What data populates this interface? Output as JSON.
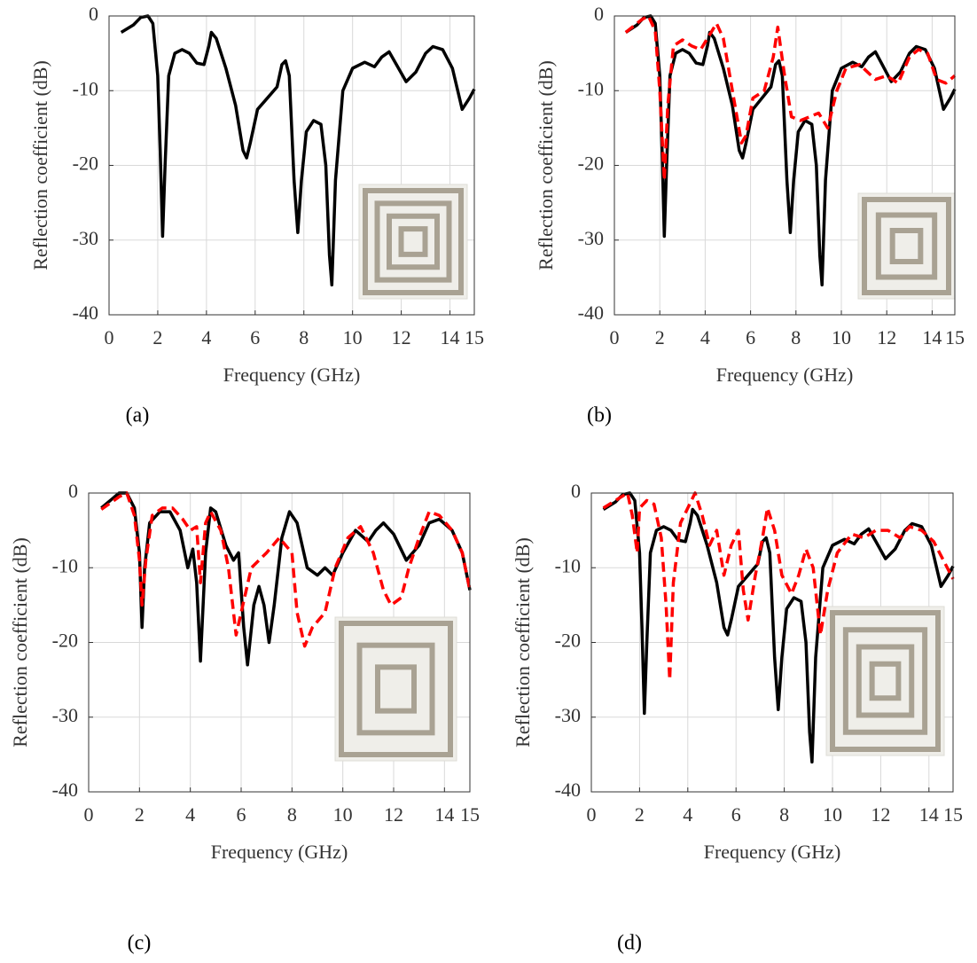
{
  "chart_data": [
    {
      "type": "line",
      "caption": "(a)",
      "xlabel": "Frequency (GHz)",
      "ylabel": "Reflection coefficient (dB)",
      "xlim": [
        0,
        15
      ],
      "ylim": [
        -40,
        0
      ],
      "xticks": [
        0,
        2,
        4,
        6,
        8,
        10,
        12,
        14,
        15
      ],
      "yticks": [
        -40,
        -30,
        -20,
        -10,
        0
      ],
      "grid": true,
      "series": [
        {
          "color": "#000000",
          "dash": false,
          "x": [
            0.5,
            1.0,
            1.3,
            1.6,
            1.8,
            2.0,
            2.1,
            2.2,
            2.3,
            2.45,
            2.7,
            3.0,
            3.3,
            3.6,
            3.9,
            4.1,
            4.2,
            4.4,
            4.8,
            5.2,
            5.5,
            5.65,
            5.8,
            6.1,
            6.5,
            6.9,
            7.1,
            7.25,
            7.4,
            7.6,
            7.75,
            7.9,
            8.1,
            8.4,
            8.7,
            8.9,
            9.05,
            9.15,
            9.3,
            9.6,
            10.0,
            10.5,
            10.9,
            11.2,
            11.5,
            11.8,
            12.2,
            12.6,
            13.0,
            13.3,
            13.7,
            14.1,
            14.5,
            14.8,
            15.0
          ],
          "values": [
            -2.2,
            -1.2,
            -0.2,
            0,
            -1,
            -8,
            -18,
            -29.5,
            -20,
            -8,
            -5,
            -4.5,
            -5,
            -6.3,
            -6.5,
            -4,
            -2.2,
            -3,
            -7,
            -12,
            -18,
            -19,
            -17,
            -12.5,
            -11,
            -9.5,
            -6.5,
            -6,
            -8,
            -22,
            -29,
            -22,
            -15.5,
            -14,
            -14.5,
            -20,
            -32,
            -36,
            -22,
            -10,
            -7,
            -6.2,
            -6.8,
            -5.5,
            -4.8,
            -6.5,
            -8.8,
            -7.5,
            -5,
            -4.1,
            -4.5,
            -7,
            -12.5,
            -11,
            -9.8
          ]
        }
      ]
    },
    {
      "type": "line",
      "caption": "(b)",
      "xlabel": "Frequency (GHz)",
      "ylabel": "Reflection coefficient (dB)",
      "xlim": [
        0,
        15
      ],
      "ylim": [
        -40,
        0
      ],
      "xticks": [
        0,
        2,
        4,
        6,
        8,
        10,
        12,
        14,
        15
      ],
      "yticks": [
        -40,
        -30,
        -20,
        -10,
        0
      ],
      "grid": true,
      "series": [
        {
          "color": "#000000",
          "dash": false,
          "x": [
            0.5,
            1.0,
            1.3,
            1.6,
            1.8,
            2.0,
            2.1,
            2.2,
            2.3,
            2.45,
            2.7,
            3.0,
            3.3,
            3.6,
            3.9,
            4.1,
            4.2,
            4.4,
            4.8,
            5.2,
            5.5,
            5.65,
            5.8,
            6.1,
            6.5,
            6.9,
            7.1,
            7.25,
            7.4,
            7.6,
            7.75,
            7.9,
            8.1,
            8.4,
            8.7,
            8.9,
            9.05,
            9.15,
            9.3,
            9.6,
            10.0,
            10.5,
            10.9,
            11.2,
            11.5,
            11.8,
            12.2,
            12.6,
            13.0,
            13.3,
            13.7,
            14.1,
            14.5,
            14.8,
            15.0
          ],
          "values": [
            -2.2,
            -1.2,
            -0.2,
            0,
            -1,
            -8,
            -18,
            -29.5,
            -20,
            -8,
            -5,
            -4.5,
            -5,
            -6.3,
            -6.5,
            -4,
            -2.2,
            -3,
            -7,
            -12,
            -18,
            -19,
            -17,
            -12.5,
            -11,
            -9.5,
            -6.5,
            -6,
            -8,
            -22,
            -29,
            -22,
            -15.5,
            -14,
            -14.5,
            -20,
            -32,
            -36,
            -22,
            -10,
            -7,
            -6.2,
            -6.8,
            -5.5,
            -4.8,
            -6.5,
            -8.8,
            -7.5,
            -5,
            -4.1,
            -4.5,
            -7,
            -12.5,
            -11,
            -9.8
          ]
        },
        {
          "color": "#ff0000",
          "dash": true,
          "x": [
            0.5,
            1.2,
            1.5,
            1.8,
            2.0,
            2.2,
            2.35,
            2.6,
            3.0,
            3.4,
            3.8,
            4.2,
            4.5,
            4.8,
            5.2,
            5.6,
            5.8,
            6.1,
            6.6,
            7.0,
            7.2,
            7.5,
            7.8,
            8.2,
            8.6,
            9.0,
            9.4,
            9.8,
            10.2,
            10.8,
            11.5,
            12.0,
            12.5,
            13.0,
            13.4,
            13.8,
            14.2,
            14.6,
            15.0
          ],
          "values": [
            -2.2,
            -0.5,
            0,
            -2,
            -10,
            -22,
            -12,
            -4,
            -3.2,
            -4,
            -4.5,
            -2.5,
            -1,
            -3,
            -10,
            -17,
            -16,
            -11,
            -10,
            -5.5,
            -1.5,
            -8,
            -13.5,
            -14,
            -13.5,
            -13,
            -15,
            -10,
            -7,
            -6.5,
            -8.5,
            -8,
            -9,
            -5.5,
            -4.5,
            -5,
            -8.5,
            -9,
            -8
          ]
        }
      ]
    },
    {
      "type": "line",
      "caption": "(c)",
      "xlabel": "Frequency (GHz)",
      "ylabel": "Reflection coefficient (dB)",
      "xlim": [
        0,
        15
      ],
      "ylim": [
        -40,
        0
      ],
      "xticks": [
        0,
        2,
        4,
        6,
        8,
        10,
        12,
        14,
        15
      ],
      "yticks": [
        -40,
        -30,
        -20,
        -10,
        0
      ],
      "grid": true,
      "series": [
        {
          "color": "#000000",
          "dash": false,
          "x": [
            0.5,
            1.2,
            1.5,
            1.8,
            2.0,
            2.1,
            2.2,
            2.4,
            2.8,
            3.2,
            3.6,
            3.9,
            4.1,
            4.25,
            4.4,
            4.6,
            4.8,
            5.0,
            5.4,
            5.7,
            5.9,
            6.1,
            6.25,
            6.5,
            6.7,
            6.9,
            7.1,
            7.3,
            7.6,
            7.9,
            8.2,
            8.6,
            9.0,
            9.3,
            9.6,
            10.0,
            10.5,
            11.0,
            11.3,
            11.6,
            12.0,
            12.5,
            13.0,
            13.4,
            13.8,
            14.3,
            14.7,
            15.0
          ],
          "values": [
            -2,
            0,
            0,
            -2,
            -8,
            -18,
            -10,
            -4,
            -2.5,
            -2.5,
            -5,
            -10,
            -7.5,
            -12,
            -22.5,
            -8,
            -2,
            -2.5,
            -7,
            -9,
            -8,
            -18,
            -23,
            -15,
            -12.5,
            -15,
            -20,
            -15,
            -6,
            -2.5,
            -4,
            -10,
            -11,
            -10,
            -11,
            -8,
            -5,
            -6.5,
            -5,
            -4,
            -5.5,
            -9,
            -7,
            -4,
            -3.5,
            -5,
            -8,
            -13
          ]
        },
        {
          "color": "#ff0000",
          "dash": true,
          "x": [
            0.5,
            1.2,
            1.5,
            1.8,
            2.0,
            2.1,
            2.25,
            2.5,
            2.9,
            3.3,
            3.7,
            4.0,
            4.25,
            4.4,
            4.6,
            4.8,
            5.2,
            5.5,
            5.8,
            6.0,
            6.4,
            7.0,
            7.5,
            8.0,
            8.2,
            8.5,
            8.8,
            9.3,
            9.7,
            10.2,
            10.7,
            11.2,
            11.6,
            11.9,
            12.3,
            12.6,
            13.0,
            13.4,
            13.8,
            14.3,
            14.7,
            15.0
          ],
          "values": [
            -2.2,
            -0.5,
            0,
            -3,
            -9,
            -15,
            -9,
            -3,
            -2,
            -2,
            -3.5,
            -5,
            -4.5,
            -12,
            -4,
            -2.5,
            -5,
            -10,
            -19,
            -16,
            -10,
            -8,
            -6,
            -8,
            -16,
            -20.5,
            -18,
            -16,
            -10,
            -6,
            -4.5,
            -8,
            -13,
            -15,
            -14,
            -10,
            -6,
            -2.5,
            -3,
            -5,
            -8,
            -13
          ]
        }
      ]
    },
    {
      "type": "line",
      "caption": "(d)",
      "xlabel": "Frequency (GHz)",
      "ylabel": "Reflection coefficient (dB)",
      "xlim": [
        0,
        15
      ],
      "ylim": [
        -40,
        0
      ],
      "xticks": [
        0,
        2,
        4,
        6,
        8,
        10,
        12,
        14,
        15
      ],
      "yticks": [
        -40,
        -30,
        -20,
        -10,
        0
      ],
      "grid": true,
      "series": [
        {
          "color": "#000000",
          "dash": false,
          "x": [
            0.5,
            1.0,
            1.3,
            1.6,
            1.8,
            2.0,
            2.1,
            2.2,
            2.3,
            2.45,
            2.7,
            3.0,
            3.3,
            3.6,
            3.9,
            4.1,
            4.2,
            4.4,
            4.8,
            5.2,
            5.5,
            5.65,
            5.8,
            6.1,
            6.5,
            6.9,
            7.1,
            7.25,
            7.4,
            7.6,
            7.75,
            7.9,
            8.1,
            8.4,
            8.7,
            8.9,
            9.05,
            9.15,
            9.3,
            9.6,
            10.0,
            10.5,
            10.9,
            11.2,
            11.5,
            11.8,
            12.2,
            12.6,
            13.0,
            13.3,
            13.7,
            14.1,
            14.5,
            14.8,
            15.0
          ],
          "values": [
            -2.2,
            -1.2,
            -0.2,
            0,
            -1,
            -8,
            -18,
            -29.5,
            -20,
            -8,
            -5,
            -4.5,
            -5,
            -6.3,
            -6.5,
            -4,
            -2.2,
            -3,
            -7,
            -12,
            -18,
            -19,
            -17,
            -12.5,
            -11,
            -9.5,
            -6.5,
            -6,
            -8,
            -22,
            -29,
            -22,
            -15.5,
            -14,
            -14.5,
            -20,
            -32,
            -36,
            -22,
            -10,
            -7,
            -6.2,
            -6.8,
            -5.5,
            -4.8,
            -6.5,
            -8.8,
            -7.5,
            -5,
            -4.1,
            -4.5,
            -7,
            -12.5,
            -11,
            -9.8
          ]
        },
        {
          "color": "#ff0000",
          "dash": true,
          "x": [
            0.5,
            1.0,
            1.5,
            1.7,
            1.9,
            2.0,
            2.3,
            2.6,
            2.9,
            3.1,
            3.25,
            3.4,
            3.7,
            4.0,
            4.3,
            4.6,
            4.9,
            5.2,
            5.5,
            5.8,
            6.1,
            6.3,
            6.5,
            6.8,
            7.1,
            7.3,
            7.6,
            7.9,
            8.3,
            8.6,
            8.9,
            9.2,
            9.5,
            9.8,
            10.2,
            10.8,
            11.3,
            11.8,
            12.3,
            12.8,
            13.2,
            13.7,
            14.2,
            14.6,
            15.0
          ],
          "values": [
            -2,
            -1,
            0,
            -3,
            -8,
            -2,
            -1,
            -1.5,
            -6,
            -15,
            -25,
            -12,
            -4,
            -2,
            0,
            -3,
            -7,
            -5,
            -11,
            -7,
            -5,
            -13,
            -17,
            -11,
            -6,
            -2,
            -5,
            -11,
            -13.5,
            -11,
            -7.5,
            -10,
            -19,
            -13,
            -8,
            -5.5,
            -6,
            -5,
            -5,
            -6,
            -4.5,
            -5,
            -6.5,
            -9,
            -11.5
          ]
        }
      ]
    }
  ]
}
